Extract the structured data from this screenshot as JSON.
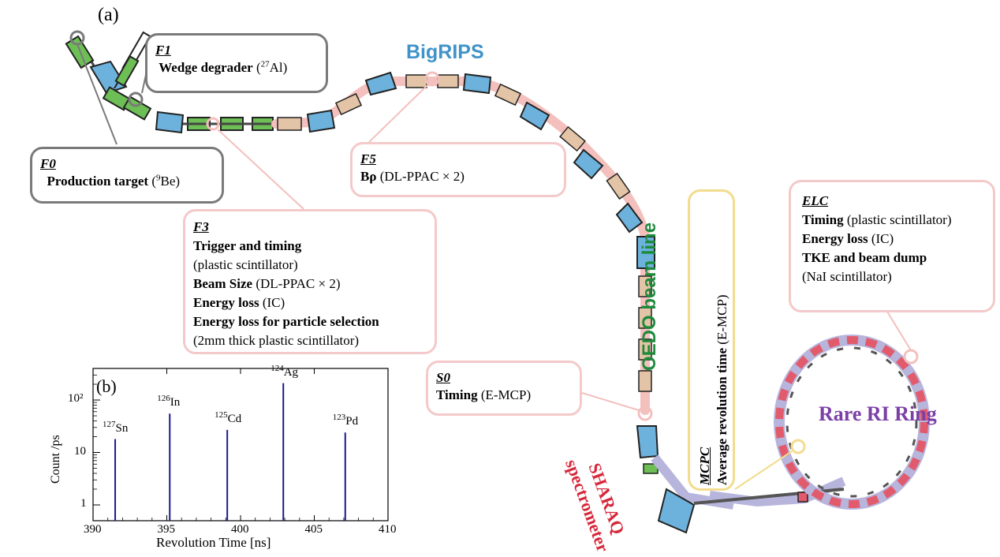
{
  "panel_a_label": "(a)",
  "panel_b_label": "(b)",
  "labels": {
    "bigrips": "BigRIPS",
    "oedo": "OEDO beam line",
    "sharaq_1": "SHARAQ",
    "sharaq_2": "spectrometer",
    "ring": "Rare RI Ring"
  },
  "boxes": {
    "f1": {
      "head": "F1",
      "l1_bold": "Wedge degrader",
      "l1_rest": " (",
      "l1_sup": "27",
      "l1_end": "Al)"
    },
    "f0": {
      "head": "F0",
      "l1_bold": "Production target",
      "l1_rest": " (",
      "l1_sup": "9",
      "l1_end": "Be)"
    },
    "f5": {
      "head": "F5",
      "l1_bold": "Bρ",
      "l1_rest": " (DL-PPAC × 2)"
    },
    "f3": {
      "head": "F3",
      "l1": "Trigger and timing",
      "l2": "(plastic scintillator)",
      "l3_bold": "Beam Size",
      "l3_rest": " (DL-PPAC × 2)",
      "l4_bold": "Energy loss",
      "l4_rest": " (IC)",
      "l5": "Energy loss for particle selection",
      "l6": "(2mm thick plastic scintillator)"
    },
    "s0": {
      "head": "S0",
      "l1_bold": "Timing",
      "l1_rest": " (E-MCP)"
    },
    "mcpc": {
      "head": "MCPC",
      "l1_bold": "Average revolution time",
      "l1_rest": " (E-MCP)"
    },
    "elc": {
      "head": "ELC",
      "l1_bold": "Timing",
      "l1_rest": "  (plastic scintillator)",
      "l2_bold": "Energy loss",
      "l2_rest": " (IC)",
      "l3": "TKE and beam dump",
      "l4": "(NaI scintillator)"
    }
  },
  "colors": {
    "bigrips": "#3f93c8",
    "oedo": "#1e8a3c",
    "sharaq": "#d6283b",
    "ring": "#7b3fa6",
    "dipole": "#6cb2dc",
    "quad": "#6dbf55",
    "pink_pipe": "#f3c0bd",
    "tan": "#e3c4a6",
    "ring_magnet": "#e15b6c",
    "ring_pipe": "#b7b5dc",
    "peak": "#1a1a8c"
  },
  "chart_data": {
    "type": "bar",
    "title": "",
    "xlabel": "Revolution Time [ns]",
    "ylabel": "Count /ps",
    "xlim": [
      390,
      410
    ],
    "ylim": [
      0.5,
      400
    ],
    "yscale": "log",
    "xticks": [
      "390",
      "395",
      "400",
      "405",
      "410"
    ],
    "yticks": [
      "1",
      "10",
      "10²"
    ],
    "peaks": [
      {
        "iso_sup": "127",
        "iso": "Sn",
        "x": 391.5,
        "y": 18
      },
      {
        "iso_sup": "126",
        "iso": "In",
        "x": 395.2,
        "y": 55
      },
      {
        "iso_sup": "125",
        "iso": "Cd",
        "x": 399.1,
        "y": 27
      },
      {
        "iso_sup": "124",
        "iso": "Ag",
        "x": 402.9,
        "y": 210
      },
      {
        "iso_sup": "123",
        "iso": "Pd",
        "x": 407.1,
        "y": 24
      }
    ]
  }
}
